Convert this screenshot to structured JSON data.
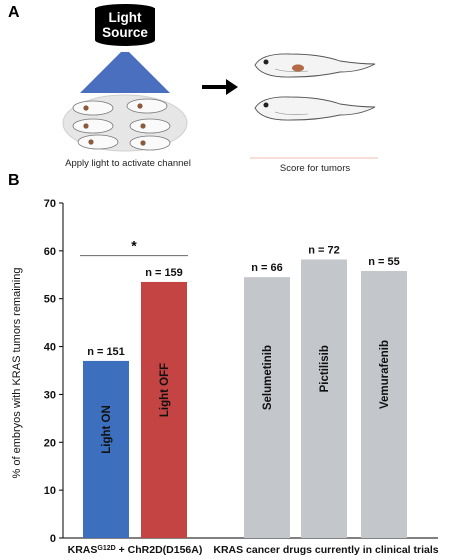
{
  "panelA": {
    "label": "A",
    "light_source_line1": "Light",
    "light_source_line2": "Source",
    "left_caption": "Apply light to activate channel",
    "right_caption": "Score for tumors"
  },
  "panelB": {
    "label": "B"
  },
  "colors": {
    "light_on": "#3d6fbf",
    "light_off": "#c44444",
    "drug": "#c3c6cb",
    "beam": "#4a6fbf"
  },
  "chart_data": {
    "type": "bar",
    "ylabel": "% of embryos with KRAS tumors remaining",
    "ylim": [
      0,
      70
    ],
    "yticks": [
      0,
      10,
      20,
      30,
      40,
      50,
      60,
      70
    ],
    "categories": [
      "Light ON",
      "Light OFF",
      "Selumetinib",
      "Pictilisib",
      "Vemurafenib"
    ],
    "values": [
      37,
      53.5,
      54.5,
      58.2,
      55.8
    ],
    "n_labels": [
      "n = 151",
      "n = 159",
      "n = 66",
      "n = 72",
      "n = 55"
    ],
    "group_labels": [
      {
        "main": "KRAS",
        "sup": "G12D",
        "rest": " + ChR2D(D156A)"
      },
      {
        "main": "KRAS cancer drugs currently in clinical trials"
      }
    ],
    "significance": {
      "symbol": "*",
      "between": [
        "Light ON",
        "Light OFF"
      ],
      "y": 59
    }
  }
}
